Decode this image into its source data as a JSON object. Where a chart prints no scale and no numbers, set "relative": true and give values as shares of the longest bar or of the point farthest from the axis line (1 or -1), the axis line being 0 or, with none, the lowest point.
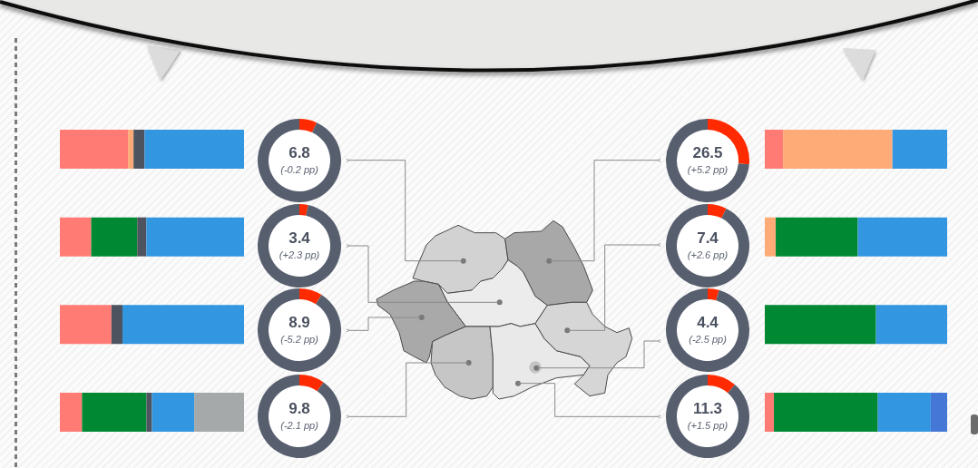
{
  "chart_data": [
    {
      "type": "bar",
      "orientation": "horizontal",
      "stacked": true,
      "relative": true,
      "categories": [
        null,
        null,
        null,
        null
      ],
      "series": [
        {
          "color": "#ff7b74",
          "values": [
            0.37,
            0.17,
            0.28,
            0.12
          ]
        },
        {
          "color": "#ffab78",
          "values": [
            0.03,
            null,
            null,
            null
          ]
        },
        {
          "color": "#008833",
          "values": [
            null,
            0.25,
            null,
            0.35
          ]
        },
        {
          "color": "#4d535f",
          "values": [
            0.06,
            0.05,
            0.06,
            0.03
          ]
        },
        {
          "color": "#3396e0",
          "values": [
            0.54,
            0.53,
            0.66,
            0.23
          ]
        },
        {
          "color": "#a6a9a9",
          "values": [
            null,
            null,
            null,
            0.27
          ]
        }
      ]
    },
    {
      "type": "donut",
      "title": "6.8",
      "subtitle": "(-0.2 pp)",
      "categories": [
        null,
        null
      ],
      "values": [
        6.8,
        93.2
      ],
      "colors": [
        "#ff2a00",
        "#575e6e"
      ]
    },
    {
      "type": "donut",
      "title": "3.4",
      "subtitle": "(+2.3 pp)",
      "categories": [
        null,
        null
      ],
      "values": [
        3.4,
        96.6
      ],
      "colors": [
        "#ff2a00",
        "#575e6e"
      ]
    },
    {
      "type": "donut",
      "title": "8.9",
      "subtitle": "(-5.2 pp)",
      "categories": [
        null,
        null
      ],
      "values": [
        8.9,
        91.1
      ],
      "colors": [
        "#ff2a00",
        "#575e6e"
      ]
    },
    {
      "type": "donut",
      "title": "9.8",
      "subtitle": "(-2.1 pp)",
      "categories": [
        null,
        null
      ],
      "values": [
        9.8,
        90.2
      ],
      "colors": [
        "#ff2a00",
        "#575e6e"
      ]
    },
    {
      "type": "donut",
      "title": "26.5",
      "subtitle": "(+5.2 pp)",
      "categories": [
        null,
        null
      ],
      "values": [
        26.5,
        73.5
      ],
      "colors": [
        "#ff2a00",
        "#575e6e"
      ]
    },
    {
      "type": "donut",
      "title": "7.4",
      "subtitle": "(+2.6 pp)",
      "categories": [
        null,
        null
      ],
      "values": [
        7.4,
        92.6
      ],
      "colors": [
        "#ff2a00",
        "#575e6e"
      ]
    },
    {
      "type": "donut",
      "title": "4.4",
      "subtitle": "(-2.5 pp)",
      "categories": [
        null,
        null
      ],
      "values": [
        4.4,
        95.6
      ],
      "colors": [
        "#ff2a00",
        "#575e6e"
      ]
    },
    {
      "type": "donut",
      "title": "11.3",
      "subtitle": "(+1.5 pp)",
      "categories": [
        null,
        null
      ],
      "values": [
        11.3,
        88.7
      ],
      "colors": [
        "#ff2a00",
        "#575e6e"
      ]
    },
    {
      "type": "bar",
      "orientation": "horizontal",
      "stacked": true,
      "relative": true,
      "categories": [
        null,
        null,
        null,
        null
      ],
      "series": [
        {
          "color": "#ff7b74",
          "values": [
            0.1,
            null,
            null,
            0.05
          ]
        },
        {
          "color": "#ffab78",
          "values": [
            0.6,
            0.06,
            null,
            null
          ]
        },
        {
          "color": "#008833",
          "values": [
            null,
            0.45,
            0.61,
            0.57
          ]
        },
        {
          "color": "#3396e0",
          "values": [
            0.3,
            0.49,
            0.39,
            0.29
          ]
        },
        {
          "color": "#4477d6",
          "values": [
            null,
            null,
            null,
            0.09
          ]
        }
      ]
    }
  ]
}
